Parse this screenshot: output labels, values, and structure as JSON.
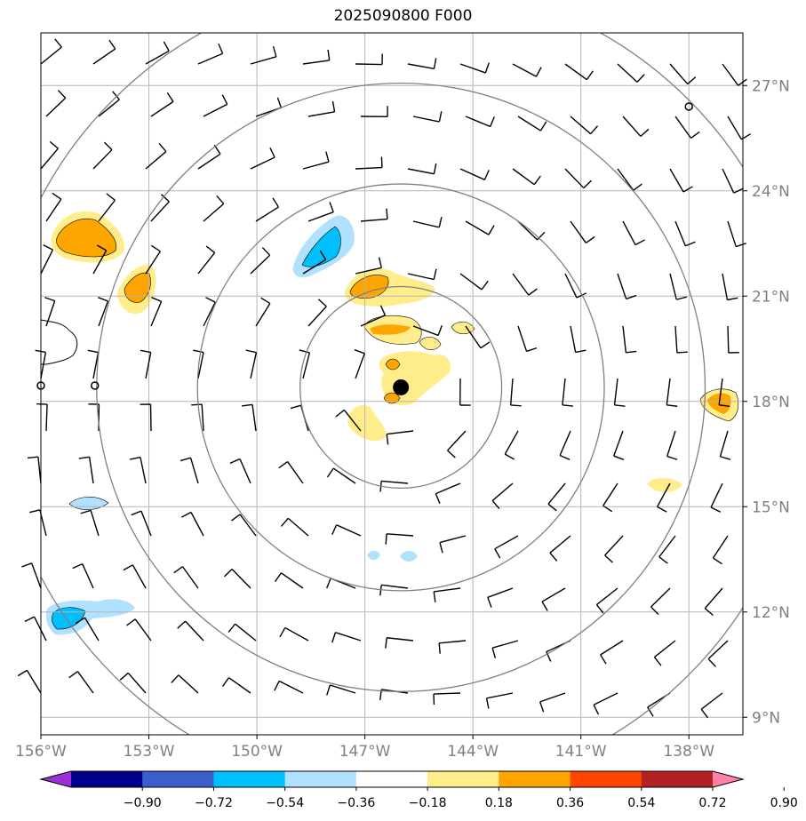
{
  "title": "2025090800 F000",
  "map": {
    "lon_range": [
      -156,
      -136.5
    ],
    "lat_range": [
      8.5,
      28.5
    ],
    "x_ticks": [
      {
        "lon": -156,
        "label": "156°W"
      },
      {
        "lon": -153,
        "label": "153°W"
      },
      {
        "lon": -150,
        "label": "150°W"
      },
      {
        "lon": -147,
        "label": "147°W"
      },
      {
        "lon": -144,
        "label": "144°W"
      },
      {
        "lon": -141,
        "label": "141°W"
      },
      {
        "lon": -138,
        "label": "138°W"
      }
    ],
    "y_ticks": [
      {
        "lat": 27,
        "label": "27°N"
      },
      {
        "lat": 24,
        "label": "24°N"
      },
      {
        "lat": 21,
        "label": "21°N"
      },
      {
        "lat": 18,
        "label": "18°N"
      },
      {
        "lat": 15,
        "label": "15°N"
      },
      {
        "lat": 12,
        "label": "12°N"
      },
      {
        "lat": 9,
        "label": "9°N"
      }
    ],
    "storm_center": {
      "lon": -146,
      "lat": 18.4
    },
    "range_rings_deg": [
      2.8,
      5.65,
      8.45,
      11.3
    ],
    "small_markers": [
      {
        "lon": -154.5,
        "lat": 18.45
      },
      {
        "lon": -138.0,
        "lat": 26.4
      },
      {
        "lon": -156.0,
        "lat": 18.45
      }
    ]
  },
  "colorbar": {
    "ticks": [
      "−0.90",
      "−0.72",
      "−0.54",
      "−0.36",
      "−0.18",
      "0.18",
      "0.36",
      "0.54",
      "0.72",
      "0.90"
    ],
    "colors": [
      "#9b30d9",
      "#00008b",
      "#3a5fcd",
      "#00bfff",
      "#b0e2ff",
      "#ffffff",
      "#ffec8b",
      "#ffa500",
      "#ff4500",
      "#b22222",
      "#ff82ab"
    ]
  }
}
